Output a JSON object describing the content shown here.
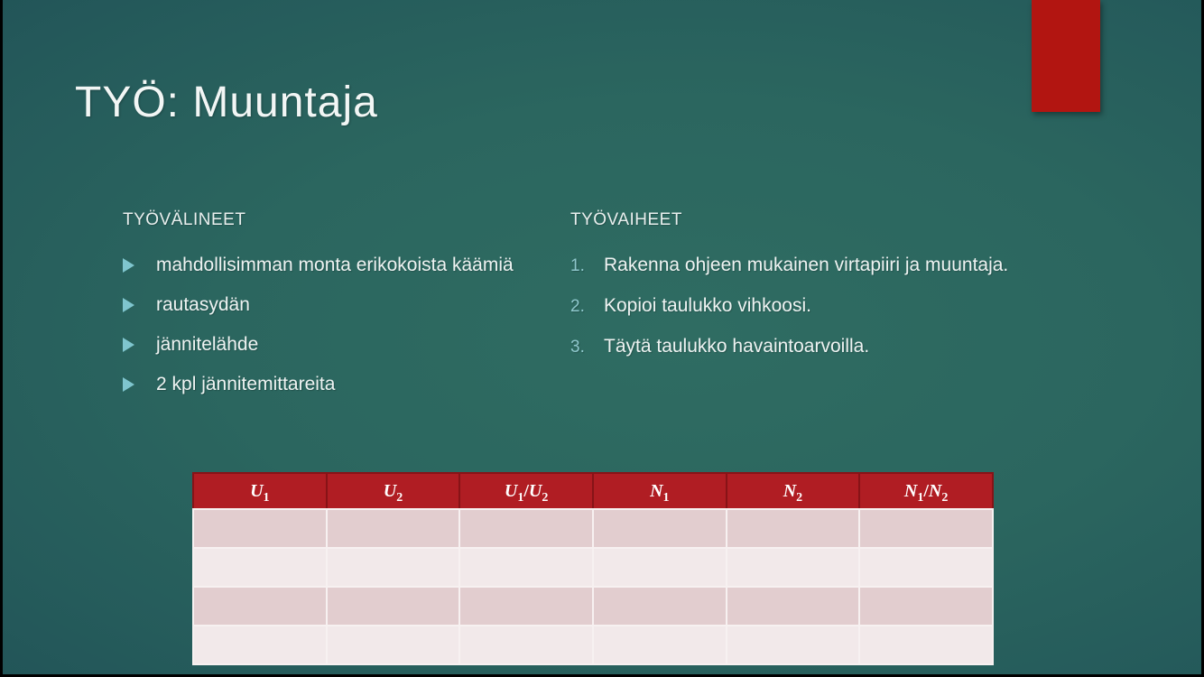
{
  "slide": {
    "title": "TYÖ: Muuntaja"
  },
  "accent": {
    "color": "#b21511"
  },
  "left_column": {
    "heading": "TYÖVÄLINEET",
    "bullets": [
      "mahdollisimman monta erikokoista käämiä",
      "rautasydän",
      "jännitelähde",
      "2 kpl jännitemittareita"
    ]
  },
  "right_column": {
    "heading": "TYÖVAIHEET",
    "steps": [
      {
        "number": "1.",
        "text": "Rakenna ohjeen mukainen virtapiiri ja muuntaja."
      },
      {
        "number": "2.",
        "text": "Kopioi taulukko vihkoosi."
      },
      {
        "number": "3.",
        "text": "Täytä taulukko havaintoarvoilla."
      }
    ]
  },
  "table": {
    "headers": [
      [
        {
          "v": "U",
          "s": "1"
        }
      ],
      [
        {
          "v": "U",
          "s": "2"
        }
      ],
      [
        {
          "v": "U",
          "s": "1"
        },
        {
          "op": "/"
        },
        {
          "v": "U",
          "s": "2"
        }
      ],
      [
        {
          "v": "N",
          "s": "1"
        }
      ],
      [
        {
          "v": "N",
          "s": "2"
        }
      ],
      [
        {
          "v": "N",
          "s": "1"
        },
        {
          "op": "/"
        },
        {
          "v": "N",
          "s": "2"
        }
      ]
    ],
    "rows": [
      [
        "",
        "",
        "",
        "",
        "",
        ""
      ],
      [
        "",
        "",
        "",
        "",
        "",
        ""
      ],
      [
        "",
        "",
        "",
        "",
        "",
        ""
      ],
      [
        "",
        "",
        "",
        "",
        "",
        ""
      ]
    ],
    "header_bg": "#b01d23",
    "row_dark": "#e2cdcf",
    "row_light": "#f2e9ea"
  },
  "colors": {
    "background_center": "#2f6c62",
    "background_edge": "#173c4b",
    "bullet_marker": "#7fc5ce",
    "step_number": "#8ec6cb",
    "title_text": "#f2f6f5"
  }
}
